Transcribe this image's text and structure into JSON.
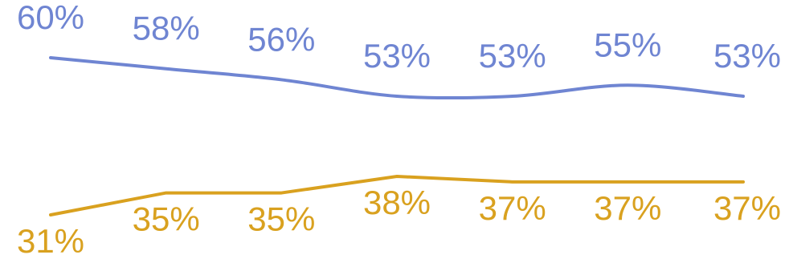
{
  "chart_data": {
    "type": "line",
    "categories": [
      "",
      "",
      "",
      "",
      "",
      "",
      ""
    ],
    "ylim": [
      0,
      100
    ],
    "grid": false,
    "series": [
      {
        "color": "#6f85d2",
        "values": [
          60,
          58,
          56,
          53,
          53,
          55,
          53
        ],
        "labels": [
          "60%",
          "58%",
          "56%",
          "53%",
          "53%",
          "55%",
          "53%"
        ],
        "smooth": true
      },
      {
        "color": "#d9a11f",
        "values": [
          31,
          35,
          35,
          38,
          37,
          37,
          37
        ],
        "labels": [
          "31%",
          "35%",
          "35%",
          "38%",
          "37%",
          "37%",
          "37%"
        ],
        "smooth": false
      }
    ]
  }
}
